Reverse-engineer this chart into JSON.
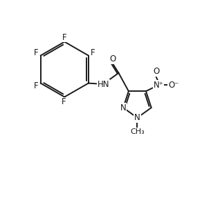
{
  "background_color": "#ffffff",
  "line_color": "#1a1a1a",
  "line_width": 1.4,
  "font_size": 8.5,
  "figsize": [
    3.05,
    2.87
  ],
  "dpi": 100,
  "xlim": [
    0,
    10
  ],
  "ylim": [
    0,
    9.5
  ]
}
